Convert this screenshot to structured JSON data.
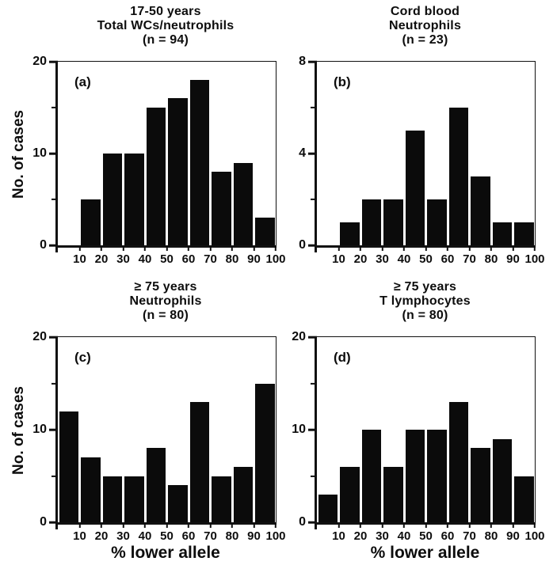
{
  "figure": {
    "background": "#ffffff",
    "bar_color": "#0b0b0b",
    "axis_color": "#111111",
    "shared_xlabel": "% lower allele",
    "shared_ylabel": "No. of cases"
  },
  "chart_data": [
    {
      "type": "bar",
      "panel_label": "(a)",
      "title": "17-50 years Total WCs/neutrophils (n = 94)",
      "title_lines": [
        "17-50 years",
        "Total WCs/neutrophils",
        "(n = 94)"
      ],
      "n": 94,
      "ylabel": "No. of cases",
      "xlim": [
        0,
        100
      ],
      "ylim": [
        0,
        20
      ],
      "y_major_ticks": [
        0,
        10,
        20
      ],
      "y_minor_ticks": [
        5,
        15
      ],
      "x_ticks": [
        10,
        20,
        30,
        40,
        50,
        60,
        70,
        80,
        90,
        100
      ],
      "bin_width": 10,
      "bin_start": [
        10,
        20,
        30,
        40,
        50,
        60,
        70,
        80,
        90
      ],
      "bin_labels": [
        "10-20",
        "20-30",
        "30-40",
        "40-50",
        "50-60",
        "60-70",
        "70-80",
        "80-90",
        "90-100"
      ],
      "values": [
        5,
        10,
        10,
        15,
        16,
        18,
        8,
        9,
        3
      ],
      "grid": false,
      "legend": false
    },
    {
      "type": "bar",
      "panel_label": "(b)",
      "title": "Cord blood Neutrophils (n = 23)",
      "title_lines": [
        "Cord blood",
        "Neutrophils",
        "(n = 23)"
      ],
      "n": 23,
      "xlim": [
        0,
        100
      ],
      "ylim": [
        0,
        8
      ],
      "y_major_ticks": [
        0,
        4,
        8
      ],
      "y_minor_ticks": [
        2,
        6
      ],
      "x_ticks": [
        10,
        20,
        30,
        40,
        50,
        60,
        70,
        80,
        90,
        100
      ],
      "bin_width": 10,
      "bin_start": [
        10,
        20,
        30,
        40,
        50,
        60,
        70,
        80,
        90
      ],
      "bin_labels": [
        "10-20",
        "20-30",
        "30-40",
        "40-50",
        "50-60",
        "60-70",
        "70-80",
        "80-90",
        "90-100"
      ],
      "values": [
        1,
        2,
        2,
        5,
        2,
        6,
        3,
        1,
        1
      ],
      "grid": false,
      "legend": false
    },
    {
      "type": "bar",
      "panel_label": "(c)",
      "title": "≥ 75 years Neutrophils (n = 80)",
      "title_lines": [
        "≥ 75 years",
        "Neutrophils",
        "(n = 80)"
      ],
      "n": 80,
      "ylabel": "No. of cases",
      "xlabel": "% lower allele",
      "xlim": [
        0,
        100
      ],
      "ylim": [
        0,
        20
      ],
      "y_major_ticks": [
        0,
        10,
        20
      ],
      "y_minor_ticks": [
        5,
        15
      ],
      "x_ticks": [
        10,
        20,
        30,
        40,
        50,
        60,
        70,
        80,
        90,
        100
      ],
      "bin_width": 10,
      "bin_start": [
        0,
        10,
        20,
        30,
        40,
        50,
        60,
        70,
        80,
        90
      ],
      "bin_labels": [
        "0-10",
        "10-20",
        "20-30",
        "30-40",
        "40-50",
        "50-60",
        "60-70",
        "70-80",
        "80-90",
        "90-100"
      ],
      "values": [
        12,
        7,
        5,
        5,
        8,
        4,
        13,
        5,
        6,
        15
      ],
      "grid": false,
      "legend": false
    },
    {
      "type": "bar",
      "panel_label": "(d)",
      "title": "≥ 75 years T lymphocytes (n = 80)",
      "title_lines": [
        "≥ 75 years",
        "T lymphocytes",
        "(n = 80)"
      ],
      "n": 80,
      "xlabel": "% lower allele",
      "xlim": [
        0,
        100
      ],
      "ylim": [
        0,
        20
      ],
      "y_major_ticks": [
        0,
        10,
        20
      ],
      "y_minor_ticks": [
        5,
        15
      ],
      "x_ticks": [
        10,
        20,
        30,
        40,
        50,
        60,
        70,
        80,
        90,
        100
      ],
      "bin_width": 10,
      "bin_start": [
        0,
        10,
        20,
        30,
        40,
        50,
        60,
        70,
        80,
        90
      ],
      "bin_labels": [
        "0-10",
        "10-20",
        "20-30",
        "30-40",
        "40-50",
        "50-60",
        "60-70",
        "70-80",
        "80-90",
        "90-100"
      ],
      "values": [
        3,
        6,
        10,
        6,
        10,
        10,
        13,
        8,
        9,
        5
      ],
      "grid": false,
      "legend": false
    }
  ]
}
